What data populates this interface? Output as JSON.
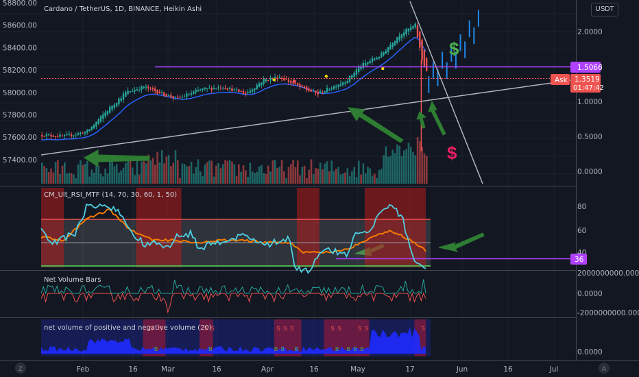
{
  "chart_title": "Cardano / TetherUS, 1D, BINANCE, Heikin Ashi",
  "currency_button": "USDT",
  "ask_label": "Ask",
  "price_tag": {
    "current": "1.3519",
    "countdown": "01:47:42",
    "level": "1.5066",
    "rsi": "36"
  },
  "left_axis": [
    "58800.00",
    "58600.00",
    "58400.00",
    "58200.00",
    "58000.00",
    "57800.00",
    "57600.00",
    "57400.00"
  ],
  "right_axis_main": [
    "2.0000",
    "1.5000",
    "1.0000",
    "0.5000",
    "0.0000"
  ],
  "right_axis_rsi": [
    "80",
    "60",
    "40"
  ],
  "right_axis_netvol": [
    "2000000000.0000",
    "0.0000",
    "-2000000000.0000"
  ],
  "right_axis_nvp": [
    "0.0000"
  ],
  "x_axis": [
    "Feb",
    "16",
    "Mar",
    "16",
    "Apr",
    "16",
    "May",
    "17",
    "Jun",
    "16",
    "Jul"
  ],
  "corner_left": "Z",
  "corner_right": "A",
  "indicators": {
    "rsi_label": "CM_Ult_RSI_MTF (14, 70, 30, 60, 1, 50)",
    "netvol_label": "Net Volume Bars",
    "nvp_label": "net volume of positive and negative volume (20)"
  },
  "annotations": {
    "dollar1": "$",
    "dollar2": "$"
  },
  "colors": {
    "up": "#26a69a",
    "down": "#ef5350",
    "purple": "#b042ff",
    "green_arrow": "#2e7d32",
    "blue_bar": "#1e88e5"
  },
  "chart_data": [
    {
      "type": "candlestick",
      "title": "Cardano / TetherUS, 1D, BINANCE, Heikin Ashi",
      "ylim": [
        -0.1,
        2.4
      ],
      "close_path": [
        [
          0,
          0.53
        ],
        [
          10,
          0.51
        ],
        [
          20,
          0.58
        ],
        [
          30,
          0.92
        ],
        [
          37,
          1.14
        ],
        [
          45,
          1.22
        ],
        [
          55,
          1.1
        ],
        [
          60,
          1.05
        ],
        [
          70,
          1.18
        ],
        [
          80,
          1.22
        ],
        [
          90,
          1.12
        ],
        [
          98,
          1.32
        ],
        [
          105,
          1.36
        ],
        [
          115,
          1.2
        ],
        [
          122,
          1.12
        ],
        [
          135,
          1.32
        ],
        [
          140,
          1.5
        ],
        [
          150,
          1.68
        ],
        [
          158,
          1.97
        ],
        [
          165,
          2.1
        ],
        [
          168,
          1.6
        ],
        [
          170,
          1.45
        ]
      ],
      "projection": [
        [
          171,
          1.25
        ],
        [
          173,
          1.45
        ],
        [
          175,
          1.35
        ],
        [
          177,
          1.6
        ],
        [
          179,
          1.45
        ],
        [
          181,
          1.7
        ],
        [
          183,
          1.6
        ],
        [
          185,
          1.85
        ],
        [
          187,
          1.75
        ],
        [
          189,
          2.05
        ],
        [
          191,
          1.95
        ],
        [
          193,
          2.2
        ]
      ]
    },
    {
      "type": "line",
      "title": "CM_Ult_RSI_MTF (14, 70, 30, 60, 1, 50)",
      "ylim": [
        22,
        100
      ],
      "rsi_path": [
        [
          0,
          70
        ],
        [
          5,
          60
        ],
        [
          15,
          68
        ],
        [
          20,
          90
        ],
        [
          28,
          92
        ],
        [
          35,
          85
        ],
        [
          40,
          68
        ],
        [
          46,
          58
        ],
        [
          52,
          60
        ],
        [
          56,
          55
        ],
        [
          60,
          65
        ],
        [
          66,
          68
        ],
        [
          70,
          55
        ],
        [
          80,
          62
        ],
        [
          90,
          66
        ],
        [
          100,
          58
        ],
        [
          110,
          64
        ],
        [
          112,
          40
        ],
        [
          118,
          36
        ],
        [
          125,
          54
        ],
        [
          135,
          50
        ],
        [
          140,
          70
        ],
        [
          145,
          68
        ],
        [
          150,
          85
        ],
        [
          155,
          92
        ],
        [
          160,
          78
        ],
        [
          165,
          45
        ],
        [
          170,
          36
        ]
      ],
      "signal_path": [
        [
          0,
          65
        ],
        [
          10,
          62
        ],
        [
          20,
          80
        ],
        [
          30,
          88
        ],
        [
          40,
          70
        ],
        [
          50,
          62
        ],
        [
          60,
          62
        ],
        [
          70,
          60
        ],
        [
          80,
          62
        ],
        [
          90,
          62
        ],
        [
          100,
          60
        ],
        [
          110,
          60
        ],
        [
          115,
          52
        ],
        [
          125,
          52
        ],
        [
          135,
          54
        ],
        [
          145,
          64
        ],
        [
          155,
          70
        ],
        [
          163,
          62
        ],
        [
          170,
          53
        ]
      ]
    }
  ]
}
